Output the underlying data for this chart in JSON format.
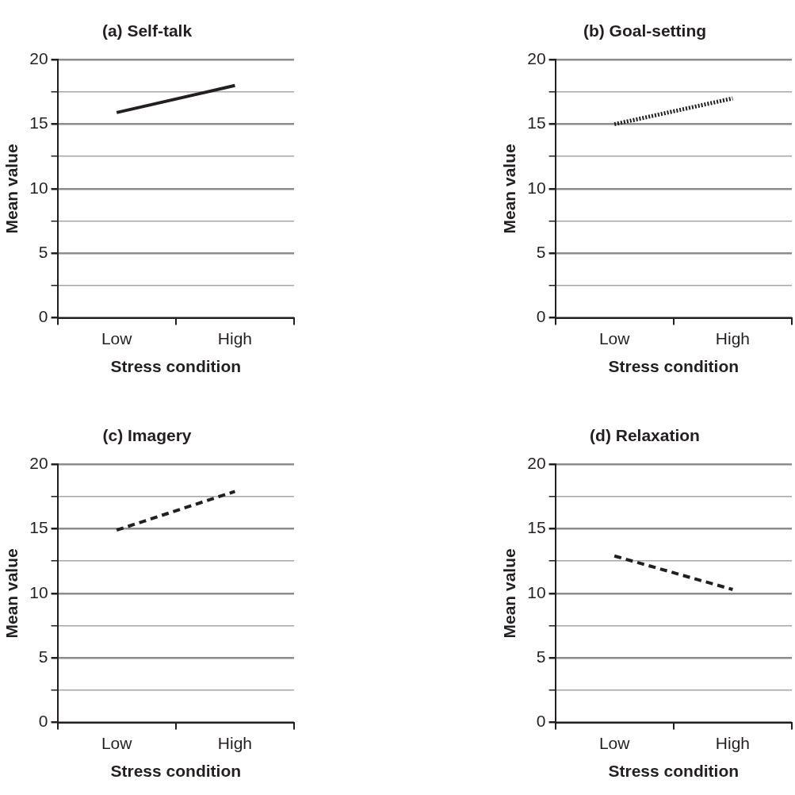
{
  "chart_data": [
    {
      "type": "line",
      "title": "(a) Self-talk",
      "xlabel": "Stress condition",
      "ylabel": "Mean value",
      "categories": [
        "Low",
        "High"
      ],
      "values": [
        15.9,
        18.0
      ],
      "color": "#231f20",
      "line_style": "solid",
      "marker": "none",
      "ylim": [
        0,
        20
      ],
      "yticks": [
        0,
        {
          "value": 2.5,
          "label": null
        },
        5,
        {
          "value": 7.5,
          "label": null
        },
        10,
        {
          "value": 12.5,
          "label": null
        },
        15,
        {
          "value": 17.5,
          "label": null
        },
        20
      ],
      "grid": "y",
      "legend": false
    },
    {
      "type": "line",
      "title": "(b) Goal-setting",
      "xlabel": "Stress condition",
      "ylabel": "Mean value",
      "categories": [
        "Low",
        "High"
      ],
      "values": [
        15.0,
        17.0
      ],
      "color": "#231f20",
      "line_style": "dotted",
      "marker": "none",
      "ylim": [
        0,
        20
      ],
      "yticks": [
        0,
        {
          "value": 2.5,
          "label": null
        },
        5,
        {
          "value": 7.5,
          "label": null
        },
        10,
        {
          "value": 12.5,
          "label": null
        },
        15,
        {
          "value": 17.5,
          "label": null
        },
        20
      ],
      "grid": "y",
      "legend": false
    },
    {
      "type": "line",
      "title": "(c) Imagery",
      "xlabel": "Stress condition",
      "ylabel": "Mean value",
      "categories": [
        "Low",
        "High"
      ],
      "values": [
        14.9,
        17.9
      ],
      "color": "#231f20",
      "line_style": "dashed",
      "marker": "none",
      "ylim": [
        0,
        20
      ],
      "yticks": [
        0,
        {
          "value": 2.5,
          "label": null
        },
        5,
        {
          "value": 7.5,
          "label": null
        },
        10,
        {
          "value": 12.5,
          "label": null
        },
        15,
        {
          "value": 17.5,
          "label": null
        },
        20
      ],
      "grid": "y",
      "legend": false
    },
    {
      "type": "line",
      "title": "(d) Relaxation",
      "xlabel": "Stress condition",
      "ylabel": "Mean value",
      "categories": [
        "Low",
        "High"
      ],
      "values": [
        12.9,
        10.3
      ],
      "color": "#231f20",
      "line_style": "dashed",
      "marker": "none",
      "ylim": [
        0,
        20
      ],
      "yticks": [
        0,
        {
          "value": 2.5,
          "label": null
        },
        5,
        {
          "value": 7.5,
          "label": null
        },
        10,
        {
          "value": 12.5,
          "label": null
        },
        15,
        {
          "value": 17.5,
          "label": null
        },
        20
      ],
      "grid": "y",
      "legend": false
    }
  ]
}
